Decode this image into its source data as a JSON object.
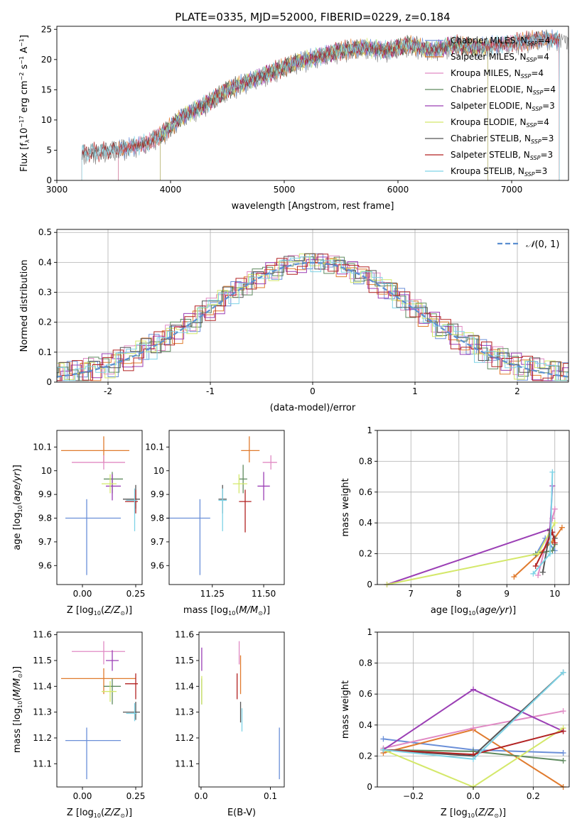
{
  "figure_title": "PLATE=0335, MJD=52000, FIBERID=0229, z=0.184",
  "fit_names": [
    "Chabrier MILES",
    "Salpeter MILES",
    "Kroupa MILES",
    "Chabrier ELODIE",
    "Salpeter ELODIE",
    "Kroupa ELODIE",
    "Chabrier STELIB",
    "Salpeter STELIB",
    "Kroupa STELIB"
  ],
  "colors": {
    "series": [
      "#6a8fd8",
      "#e07b2e",
      "#e08ac4",
      "#5f8a5f",
      "#9b3fb5",
      "#d4e86a",
      "#555555",
      "#b22222",
      "#7ed3e6"
    ],
    "grid": "#b0b0b0",
    "gaussian": "#5b8fd0",
    "spectrum_data": "#777777"
  },
  "chart_data": [
    {
      "id": "spectrum",
      "type": "line",
      "title": "PLATE=0335, MJD=52000, FIBERID=0229, z=0.184",
      "xlabel": "wavelength [Angstrom, rest frame]",
      "ylabel": "Flux [f_λ 10^-17 erg cm^-2 s^-1 A^-1]",
      "xlim": [
        3000,
        7500
      ],
      "ylim": [
        0,
        25.5
      ],
      "xticks": [
        3000,
        4000,
        5000,
        6000,
        7000
      ],
      "yticks": [
        0,
        5,
        10,
        15,
        20,
        25
      ],
      "grid": false,
      "legend_position": "right",
      "data_range": [
        3220,
        7500
      ],
      "envelope": {
        "x": [
          3220,
          3400,
          3600,
          3800,
          3950,
          4100,
          4300,
          4500,
          4700,
          4900,
          5100,
          5300,
          5500,
          5700,
          5900,
          6100,
          6300,
          6500,
          6700,
          6900,
          7100,
          7300,
          7500
        ],
        "y": [
          4.5,
          4.8,
          5.3,
          6.2,
          8.0,
          10.5,
          12.5,
          15.0,
          16.5,
          18.0,
          19.5,
          20.5,
          21.5,
          22.0,
          21.5,
          22.5,
          21.5,
          22.5,
          22.0,
          22.5,
          23.0,
          23.5,
          23.0
        ]
      },
      "series": [
        {
          "name": "Chabrier MILES",
          "nssp_label": "N",
          "nssp_sub": "SSP",
          "nssp_value": "=4",
          "start": 3540,
          "end": 7420
        },
        {
          "name": "Salpeter MILES",
          "nssp_label": "N",
          "nssp_sub": "SSP",
          "nssp_value": "=4",
          "start": 3540,
          "end": 7420
        },
        {
          "name": "Kroupa MILES",
          "nssp_label": "N",
          "nssp_sub": "SSP",
          "nssp_value": "=4",
          "start": 3540,
          "end": 7420
        },
        {
          "name": "Chabrier ELODIE",
          "nssp_label": "N",
          "nssp_sub": "SSP",
          "nssp_value": "=4",
          "start": 3910,
          "end": 6790
        },
        {
          "name": "Salpeter ELODIE",
          "nssp_label": "N",
          "nssp_sub": "SSP",
          "nssp_value": "=3",
          "start": 3910,
          "end": 6790
        },
        {
          "name": "Kroupa ELODIE",
          "nssp_label": "N",
          "nssp_sub": "SSP",
          "nssp_value": "=4",
          "start": 3910,
          "end": 6790
        },
        {
          "name": "Chabrier STELIB",
          "nssp_label": "N",
          "nssp_sub": "SSP",
          "nssp_value": "=3",
          "start": 3220,
          "end": 7420
        },
        {
          "name": "Salpeter STELIB",
          "nssp_label": "N",
          "nssp_sub": "SSP",
          "nssp_value": "=3",
          "start": 3220,
          "end": 7420
        },
        {
          "name": "Kroupa STELIB",
          "nssp_label": "N",
          "nssp_sub": "SSP",
          "nssp_value": "=3",
          "start": 3220,
          "end": 7420
        }
      ]
    },
    {
      "id": "residuals",
      "type": "bar",
      "xlabel": "(data-model)/error",
      "ylabel": "Normed distribution",
      "xlim": [
        -2.5,
        2.5
      ],
      "ylim": [
        0,
        0.51
      ],
      "xticks": [
        -2,
        -1,
        0,
        1,
        2
      ],
      "yticks": [
        0.0,
        0.1,
        0.2,
        0.3,
        0.4,
        0.5
      ],
      "grid": true,
      "legend_position": "top-right",
      "legend_label": "N(0, 1)",
      "bin_width": 0.1,
      "histogram_series": [
        {
          "offset": 0.0,
          "jitter": [
            0.01,
            -0.02,
            0.03,
            -0.01,
            0.02,
            0.0,
            -0.03,
            0.02
          ]
        },
        {
          "offset": 0.03,
          "jitter": [
            -0.02,
            0.03,
            0.0,
            0.02,
            -0.03,
            0.01,
            0.02,
            -0.01
          ]
        },
        {
          "offset": 0.06,
          "jitter": [
            0.02,
            0.0,
            -0.02,
            0.03,
            0.01,
            -0.02,
            0.0,
            0.03
          ]
        },
        {
          "offset": 0.01,
          "jitter": [
            0.0,
            0.02,
            0.01,
            -0.03,
            0.03,
            0.02,
            -0.02,
            0.0
          ]
        },
        {
          "offset": 0.04,
          "jitter": [
            -0.03,
            0.01,
            0.02,
            0.0,
            -0.02,
            0.03,
            0.01,
            -0.02
          ]
        },
        {
          "offset": 0.07,
          "jitter": [
            0.03,
            -0.01,
            0.0,
            0.02,
            0.0,
            -0.03,
            0.02,
            0.01
          ]
        },
        {
          "offset": 0.02,
          "jitter": [
            0.01,
            0.03,
            -0.02,
            0.0,
            0.02,
            0.0,
            -0.01,
            0.03
          ]
        },
        {
          "offset": 0.05,
          "jitter": [
            -0.01,
            0.0,
            0.03,
            -0.02,
            0.01,
            0.02,
            0.03,
            -0.03
          ]
        },
        {
          "offset": 0.08,
          "jitter": [
            0.02,
            -0.03,
            0.01,
            0.01,
            -0.01,
            0.0,
            0.02,
            0.02
          ]
        }
      ]
    },
    {
      "id": "age_vs_z",
      "type": "scatter",
      "xlabel": "Z [log10(Z/Z⊙)]",
      "ylabel": "age [log10(age/yr)]",
      "xlim": [
        -0.12,
        0.28
      ],
      "ylim": [
        9.52,
        10.17
      ],
      "xticks": [
        0.0,
        0.25
      ],
      "xticklabels": [
        "0.00",
        "0.25"
      ],
      "yticks": [
        9.6,
        9.7,
        9.8,
        9.9,
        10.0,
        10.1
      ],
      "points": [
        {
          "x": 0.02,
          "y": 9.8,
          "xerr": [
            0.1,
            0.16
          ],
          "yerr": [
            0.24,
            0.08
          ]
        },
        {
          "x": 0.1,
          "y": 10.085,
          "xerr": [
            0.2,
            0.12
          ],
          "yerr": [
            0.05,
            0.06
          ]
        },
        {
          "x": 0.1,
          "y": 10.035,
          "xerr": [
            0.15,
            0.1
          ],
          "yerr": [
            0.03,
            0.03
          ]
        },
        {
          "x": 0.14,
          "y": 9.965,
          "xerr": [
            0.04,
            0.05
          ],
          "yerr": [
            0.06,
            0.03
          ]
        },
        {
          "x": 0.14,
          "y": 9.935,
          "xerr": [
            0.03,
            0.04
          ],
          "yerr": [
            0.06,
            0.05
          ]
        },
        {
          "x": 0.13,
          "y": 9.945,
          "xerr": [
            0.04,
            0.03
          ],
          "yerr": [
            0.04,
            0.04
          ]
        },
        {
          "x": 0.25,
          "y": 9.88,
          "xerr": [
            0.06,
            0.02
          ],
          "yerr": [
            0.04,
            0.06
          ]
        },
        {
          "x": 0.25,
          "y": 9.87,
          "xerr": [
            0.05,
            0.01
          ],
          "yerr": [
            0.05,
            0.05
          ]
        },
        {
          "x": 0.245,
          "y": 9.875,
          "xerr": [
            0.04,
            0.01
          ],
          "yerr": [
            0.13,
            0.05
          ]
        }
      ]
    },
    {
      "id": "age_vs_mass",
      "type": "scatter",
      "xlabel": "mass [log10(M/M⊙)]",
      "xlim": [
        11.04,
        11.6
      ],
      "ylim": [
        9.52,
        10.17
      ],
      "xticks": [
        11.25,
        11.5
      ],
      "xticklabels": [
        "11.25",
        "11.50"
      ],
      "yticks": [
        9.6,
        9.7,
        9.8,
        9.9,
        10.0,
        10.1
      ],
      "points": [
        {
          "x": 11.19,
          "y": 9.8,
          "xerr": [
            0.16,
            0.05
          ],
          "yerr": [
            0.24,
            0.08
          ]
        },
        {
          "x": 11.43,
          "y": 10.085,
          "xerr": [
            0.04,
            0.05
          ],
          "yerr": [
            0.05,
            0.06
          ]
        },
        {
          "x": 11.535,
          "y": 10.035,
          "xerr": [
            0.04,
            0.03
          ],
          "yerr": [
            0.03,
            0.03
          ]
        },
        {
          "x": 11.4,
          "y": 9.965,
          "xerr": [
            0.02,
            0.02
          ],
          "yerr": [
            0.06,
            0.06
          ]
        },
        {
          "x": 11.5,
          "y": 9.935,
          "xerr": [
            0.03,
            0.03
          ],
          "yerr": [
            0.06,
            0.06
          ]
        },
        {
          "x": 11.38,
          "y": 9.945,
          "xerr": [
            0.03,
            0.04
          ],
          "yerr": [
            0.04,
            0.04
          ]
        },
        {
          "x": 11.3,
          "y": 9.88,
          "xerr": [
            0.02,
            0.02
          ],
          "yerr": [
            0.06,
            0.06
          ]
        },
        {
          "x": 11.41,
          "y": 9.87,
          "xerr": [
            0.03,
            0.03
          ],
          "yerr": [
            0.13,
            0.05
          ]
        },
        {
          "x": 11.3,
          "y": 9.875,
          "xerr": [
            0.02,
            0.02
          ],
          "yerr": [
            0.13,
            0.05
          ]
        }
      ]
    },
    {
      "id": "weight_vs_age",
      "type": "line",
      "xlabel": "age [log10(age/yr)]",
      "ylabel": "mass weight",
      "xlim": [
        6.3,
        10.3
      ],
      "ylim": [
        0,
        1
      ],
      "xticks": [
        7,
        8,
        9,
        10
      ],
      "yticks": [
        0.0,
        0.2,
        0.4,
        0.6,
        0.8,
        1.0
      ],
      "grid": true,
      "series": [
        {
          "x": [
            9.6,
            9.8,
            10.0
          ],
          "y": [
            0.19,
            0.3,
            0.22
          ]
        },
        {
          "x": [
            9.15,
            9.95,
            10.15
          ],
          "y": [
            0.05,
            0.28,
            0.37
          ]
        },
        {
          "x": [
            9.65,
            9.95,
            10.0
          ],
          "y": [
            0.06,
            0.43,
            0.49
          ]
        },
        {
          "x": [
            9.6,
            9.95,
            10.0
          ],
          "y": [
            0.2,
            0.22,
            0.26
          ]
        },
        {
          "x": [
            6.5,
            9.9,
            9.95
          ],
          "y": [
            0.0,
            0.36,
            0.64
          ]
        },
        {
          "x": [
            6.5,
            9.65,
            10.0
          ],
          "y": [
            0.0,
            0.2,
            0.4
          ]
        },
        {
          "x": [
            9.75,
            9.9,
            10.0
          ],
          "y": [
            0.08,
            0.35,
            0.3
          ]
        },
        {
          "x": [
            9.6,
            9.95,
            10.0
          ],
          "y": [
            0.12,
            0.34,
            0.27
          ]
        },
        {
          "x": [
            9.55,
            9.9,
            9.95
          ],
          "y": [
            0.07,
            0.2,
            0.73
          ]
        }
      ]
    },
    {
      "id": "mass_vs_z",
      "type": "scatter",
      "xlabel": "Z [log10(Z/Z⊙)]",
      "ylabel": "mass [log10(M/M⊙)]",
      "xlim": [
        -0.12,
        0.28
      ],
      "ylim": [
        11.01,
        11.61
      ],
      "xticks": [
        0.0,
        0.25
      ],
      "xticklabels": [
        "0.00",
        "0.25"
      ],
      "yticks": [
        11.1,
        11.2,
        11.3,
        11.4,
        11.5,
        11.6
      ],
      "points": [
        {
          "x": 0.02,
          "y": 11.19,
          "xerr": [
            0.1,
            0.16
          ],
          "yerr": [
            0.15,
            0.05
          ]
        },
        {
          "x": 0.1,
          "y": 11.43,
          "xerr": [
            0.2,
            0.15
          ],
          "yerr": [
            0.06,
            0.04
          ]
        },
        {
          "x": 0.1,
          "y": 11.535,
          "xerr": [
            0.15,
            0.1
          ],
          "yerr": [
            0.05,
            0.04
          ]
        },
        {
          "x": 0.14,
          "y": 11.4,
          "xerr": [
            0.04,
            0.04
          ],
          "yerr": [
            0.07,
            0.03
          ]
        },
        {
          "x": 0.14,
          "y": 11.5,
          "xerr": [
            0.03,
            0.03
          ],
          "yerr": [
            0.04,
            0.04
          ]
        },
        {
          "x": 0.13,
          "y": 11.38,
          "xerr": [
            0.04,
            0.03
          ],
          "yerr": [
            0.04,
            0.04
          ]
        },
        {
          "x": 0.25,
          "y": 11.3,
          "xerr": [
            0.06,
            0.02
          ],
          "yerr": [
            0.03,
            0.04
          ]
        },
        {
          "x": 0.25,
          "y": 11.41,
          "xerr": [
            0.05,
            0.01
          ],
          "yerr": [
            0.06,
            0.04
          ]
        },
        {
          "x": 0.245,
          "y": 11.295,
          "xerr": [
            0.04,
            0.01
          ],
          "yerr": [
            0.03,
            0.04
          ]
        }
      ]
    },
    {
      "id": "mass_vs_ebv",
      "type": "scatter",
      "xlabel": "E(B-V)",
      "xlim": [
        -0.003,
        0.12
      ],
      "ylim": [
        11.01,
        11.61
      ],
      "xticks": [
        0.0,
        0.1
      ],
      "xticklabels": [
        "0.0",
        "0.1"
      ],
      "yticks": [
        11.1,
        11.2,
        11.3,
        11.4,
        11.5,
        11.6
      ],
      "points": [
        {
          "x": 0.113,
          "y": 11.19,
          "xerr": [
            0,
            0
          ],
          "yerr": [
            0.15,
            0.05
          ]
        },
        {
          "x": 0.057,
          "y": 11.43,
          "xerr": [
            0,
            0
          ],
          "yerr": [
            0.06,
            0.09
          ]
        },
        {
          "x": 0.055,
          "y": 11.535,
          "xerr": [
            0,
            0
          ],
          "yerr": [
            0.05,
            0.04
          ]
        },
        {
          "x": 0.001,
          "y": 11.4,
          "xerr": [
            0,
            0
          ],
          "yerr": [
            0.07,
            0.03
          ]
        },
        {
          "x": 0.001,
          "y": 11.5,
          "xerr": [
            0,
            0
          ],
          "yerr": [
            0.04,
            0.05
          ]
        },
        {
          "x": 0.001,
          "y": 11.38,
          "xerr": [
            0,
            0
          ],
          "yerr": [
            0.05,
            0.06
          ]
        },
        {
          "x": 0.057,
          "y": 11.3,
          "xerr": [
            0,
            0
          ],
          "yerr": [
            0.04,
            0.04
          ]
        },
        {
          "x": 0.052,
          "y": 11.41,
          "xerr": [
            0,
            0
          ],
          "yerr": [
            0.06,
            0.04
          ]
        },
        {
          "x": 0.059,
          "y": 11.275,
          "xerr": [
            0,
            0
          ],
          "yerr": [
            0.05,
            0.04
          ]
        }
      ]
    },
    {
      "id": "weight_vs_z",
      "type": "line",
      "xlabel": "Z [log10(Z/Z⊙)]",
      "ylabel": "mass weight",
      "xlim": [
        -0.32,
        0.32
      ],
      "ylim": [
        0,
        1
      ],
      "xticks": [
        -0.2,
        0.0,
        0.2
      ],
      "xticklabels": [
        "−0.2",
        "0.0",
        "0.2"
      ],
      "yticks": [
        0.0,
        0.2,
        0.4,
        0.6,
        0.8,
        1.0
      ],
      "grid": true,
      "series": [
        {
          "x": [
            -0.3,
            0.0,
            0.3
          ],
          "y": [
            0.31,
            0.24,
            0.22
          ]
        },
        {
          "x": [
            -0.3,
            0.0,
            0.3
          ],
          "y": [
            0.22,
            0.37,
            0.0
          ]
        },
        {
          "x": [
            -0.3,
            0.0,
            0.3
          ],
          "y": [
            0.25,
            0.38,
            0.49
          ]
        },
        {
          "x": [
            -0.3,
            0.0,
            0.3
          ],
          "y": [
            0.24,
            0.23,
            0.17
          ]
        },
        {
          "x": [
            -0.3,
            0.0,
            0.3
          ],
          "y": [
            0.24,
            0.63,
            0.36
          ]
        },
        {
          "x": [
            -0.3,
            0.0,
            0.3
          ],
          "y": [
            0.24,
            0.0,
            0.38
          ]
        },
        {
          "x": [
            -0.3,
            0.0,
            0.3
          ],
          "y": [
            0.24,
            0.2,
            0.74
          ]
        },
        {
          "x": [
            -0.3,
            0.0,
            0.3
          ],
          "y": [
            0.24,
            0.21,
            0.36
          ]
        },
        {
          "x": [
            -0.3,
            0.0,
            0.3
          ],
          "y": [
            0.24,
            0.18,
            0.74
          ]
        }
      ]
    }
  ]
}
